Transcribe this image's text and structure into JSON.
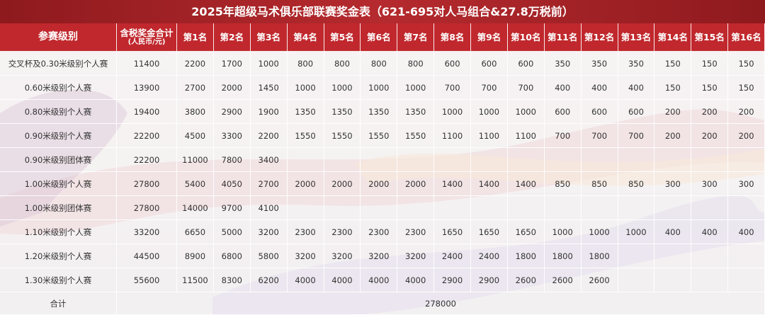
{
  "title": "2025年超级马术俱乐部联赛奖金表（621-695对人马组合&27.8万税前）",
  "table": {
    "columns": [
      "参赛级别",
      [
        "含税奖金合计",
        "(人民币/元)"
      ],
      "第1名",
      "第2名",
      "第3名",
      "第4名",
      "第5名",
      "第6名",
      "第7名",
      "第8名",
      "第9名",
      "第10名",
      "第11名",
      "第12名",
      "第13名",
      "第14名",
      "第15名",
      "第16名"
    ],
    "rows": [
      {
        "label": "交叉杯及0.30米级别个人赛",
        "total": 11400,
        "prizes": [
          2200,
          1700,
          1000,
          800,
          800,
          800,
          800,
          600,
          600,
          600,
          350,
          350,
          350,
          150,
          150,
          150
        ]
      },
      {
        "label": "0.60米级别个人赛",
        "total": 13900,
        "prizes": [
          2700,
          2000,
          1450,
          1000,
          1000,
          1000,
          1000,
          700,
          700,
          700,
          400,
          400,
          400,
          150,
          150,
          150
        ]
      },
      {
        "label": "0.80米级别个人赛",
        "total": 19400,
        "prizes": [
          3800,
          2900,
          1900,
          1350,
          1350,
          1350,
          1350,
          1000,
          1000,
          1000,
          600,
          600,
          600,
          200,
          200,
          200
        ]
      },
      {
        "label": "0.90米级别个人赛",
        "total": 22200,
        "prizes": [
          4500,
          3300,
          2200,
          1550,
          1550,
          1550,
          1550,
          1100,
          1100,
          1100,
          700,
          700,
          700,
          200,
          200,
          200
        ]
      },
      {
        "label": "0.90米级别团体赛",
        "total": 22200,
        "prizes": [
          11000,
          7800,
          3400
        ]
      },
      {
        "label": "1.00米级别个人赛",
        "total": 27800,
        "prizes": [
          5400,
          4050,
          2700,
          2000,
          2000,
          2000,
          2000,
          1400,
          1400,
          1400,
          850,
          850,
          850,
          300,
          300,
          300
        ]
      },
      {
        "label": "1.00米级别团体赛",
        "total": 27800,
        "prizes": [
          14000,
          9700,
          4100
        ]
      },
      {
        "label": "1.10米级别个人赛",
        "total": 33200,
        "prizes": [
          6650,
          5000,
          3200,
          2300,
          2300,
          2300,
          2300,
          1650,
          1650,
          1650,
          1000,
          1000,
          1000,
          400,
          400,
          400
        ]
      },
      {
        "label": "1.20米级别个人赛",
        "total": 44500,
        "prizes": [
          8900,
          6800,
          5800,
          3200,
          3200,
          3200,
          3200,
          2400,
          2400,
          1800,
          1800,
          1800
        ]
      },
      {
        "label": "1.30米级别个人赛",
        "total": 55600,
        "prizes": [
          11500,
          8300,
          6200,
          4000,
          4000,
          4000,
          4000,
          2900,
          2900,
          2600,
          2600,
          2600
        ]
      }
    ],
    "footer": {
      "label": "合计",
      "total": 278000
    }
  }
}
